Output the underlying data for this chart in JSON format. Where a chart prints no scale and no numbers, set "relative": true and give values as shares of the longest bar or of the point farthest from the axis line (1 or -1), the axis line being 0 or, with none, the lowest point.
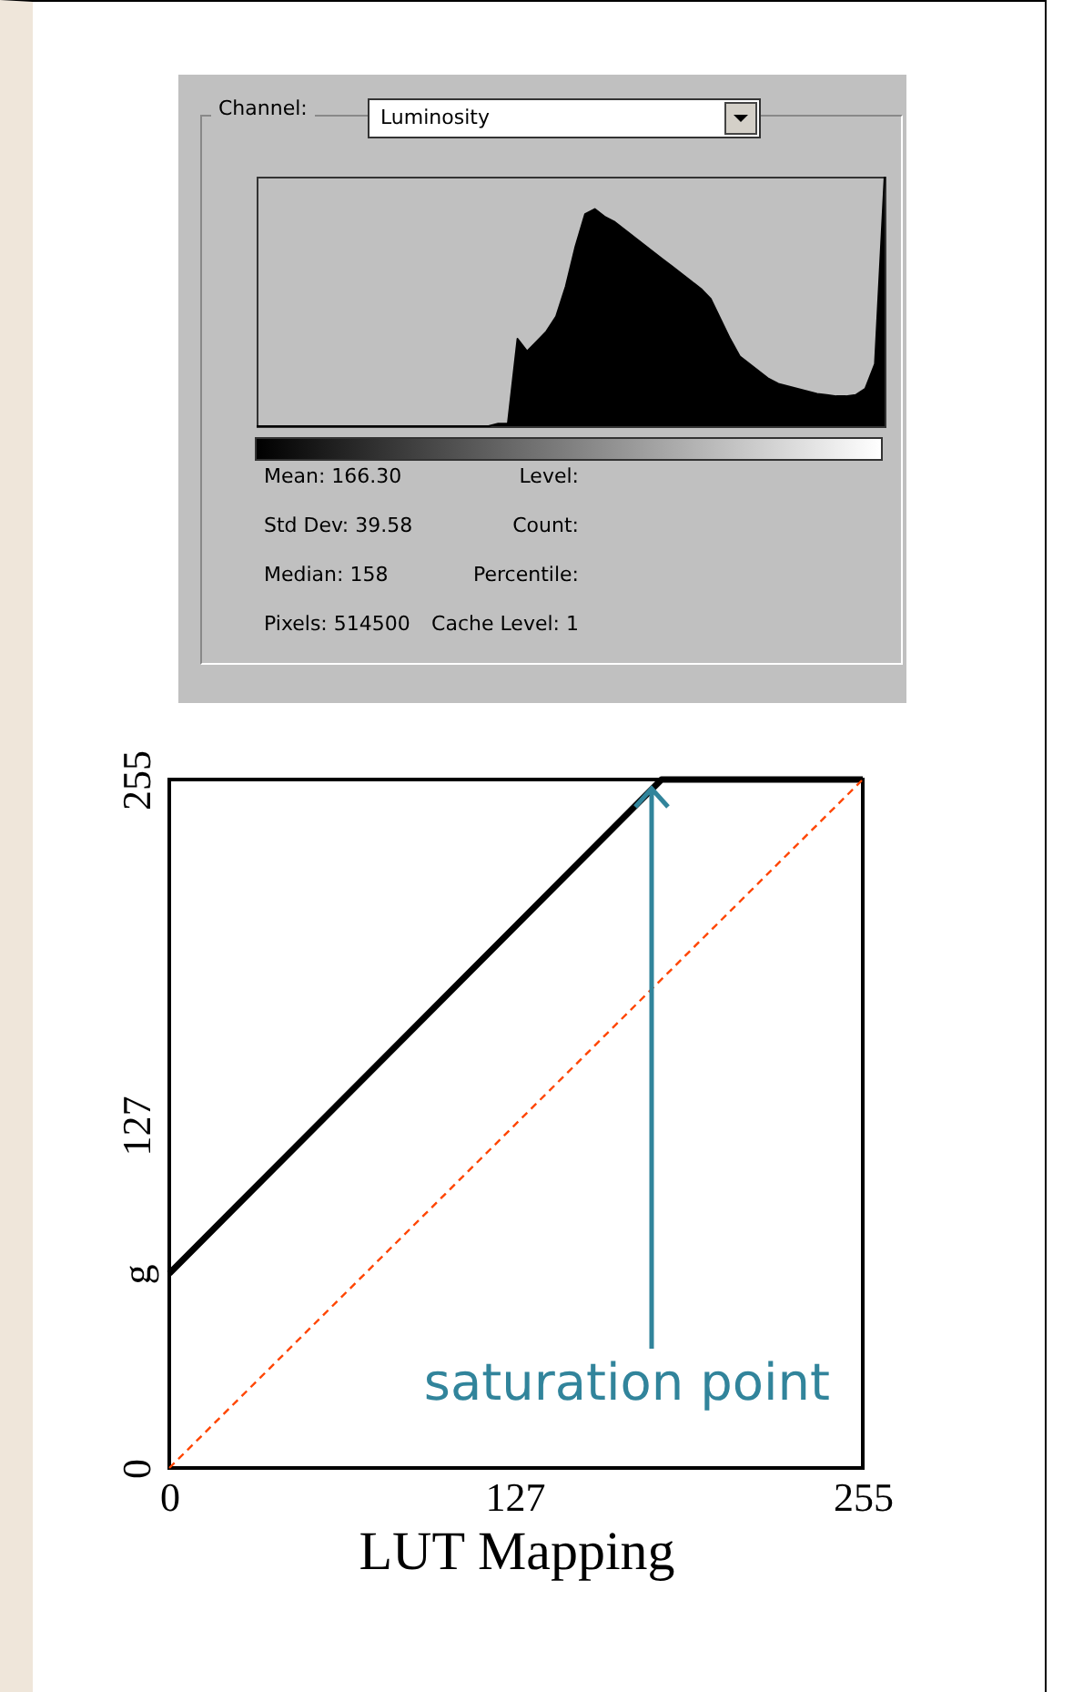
{
  "chart_data": [
    {
      "type": "area",
      "relative": true,
      "color": "#000000",
      "categories": [
        null,
        null,
        null,
        null,
        null,
        null,
        null,
        null,
        null,
        null,
        null,
        null,
        null,
        null,
        null,
        null,
        null,
        null,
        null,
        null,
        null,
        null,
        null,
        null,
        null,
        null,
        null,
        null,
        null,
        null,
        null,
        null,
        null,
        null,
        null,
        null,
        null,
        null,
        null,
        null,
        null,
        null,
        null,
        null,
        null,
        null,
        null,
        null,
        null,
        null,
        null,
        null,
        null,
        null,
        null,
        null,
        null,
        null,
        null,
        null,
        null,
        null,
        null,
        null,
        null,
        null
      ],
      "values": [
        0,
        0,
        0,
        0,
        0,
        0,
        0,
        0,
        0,
        0,
        0,
        0,
        0,
        0,
        0,
        0,
        0,
        0,
        0,
        0,
        0,
        0,
        0,
        0,
        0,
        0.01,
        0.01,
        0.35,
        0.3,
        0.34,
        0.38,
        0.44,
        0.56,
        0.72,
        0.85,
        0.87,
        0.84,
        0.82,
        0.79,
        0.76,
        0.73,
        0.7,
        0.67,
        0.64,
        0.61,
        0.58,
        0.55,
        0.51,
        0.43,
        0.35,
        0.28,
        0.25,
        0.22,
        0.19,
        0.17,
        0.16,
        0.15,
        0.14,
        0.13,
        0.125,
        0.12,
        0.12,
        0.125,
        0.15,
        0.25,
        1
      ],
      "annotations": [
        "Channel:",
        "Luminosity",
        "Mean: 166.30",
        "Level:",
        "Std Dev: 39.58",
        "Count:",
        "Median: 158",
        "Percentile:",
        "Pixels: 514500",
        "Cache Level: 1"
      ]
    },
    {
      "type": "line",
      "xlabel": "LUT Mapping",
      "grid": false,
      "xlim": [
        0,
        255
      ],
      "ylim": [
        0,
        255
      ],
      "xticks": [
        0,
        127,
        255
      ],
      "yticks": [
        0,
        {
          "value": 72,
          "label": "g"
        },
        127,
        255
      ],
      "series": [
        {
          "color": "#000000",
          "line_style": "solid",
          "x": [
            0,
            181,
            255
          ],
          "values": [
            72,
            255,
            255
          ]
        },
        {
          "color": "#ff4500",
          "line_style": "dashed",
          "x": [
            0,
            255
          ],
          "values": [
            0,
            255
          ]
        }
      ],
      "annotations": [
        {
          "text": "saturation point",
          "x": 181,
          "y": 255
        }
      ]
    }
  ]
}
